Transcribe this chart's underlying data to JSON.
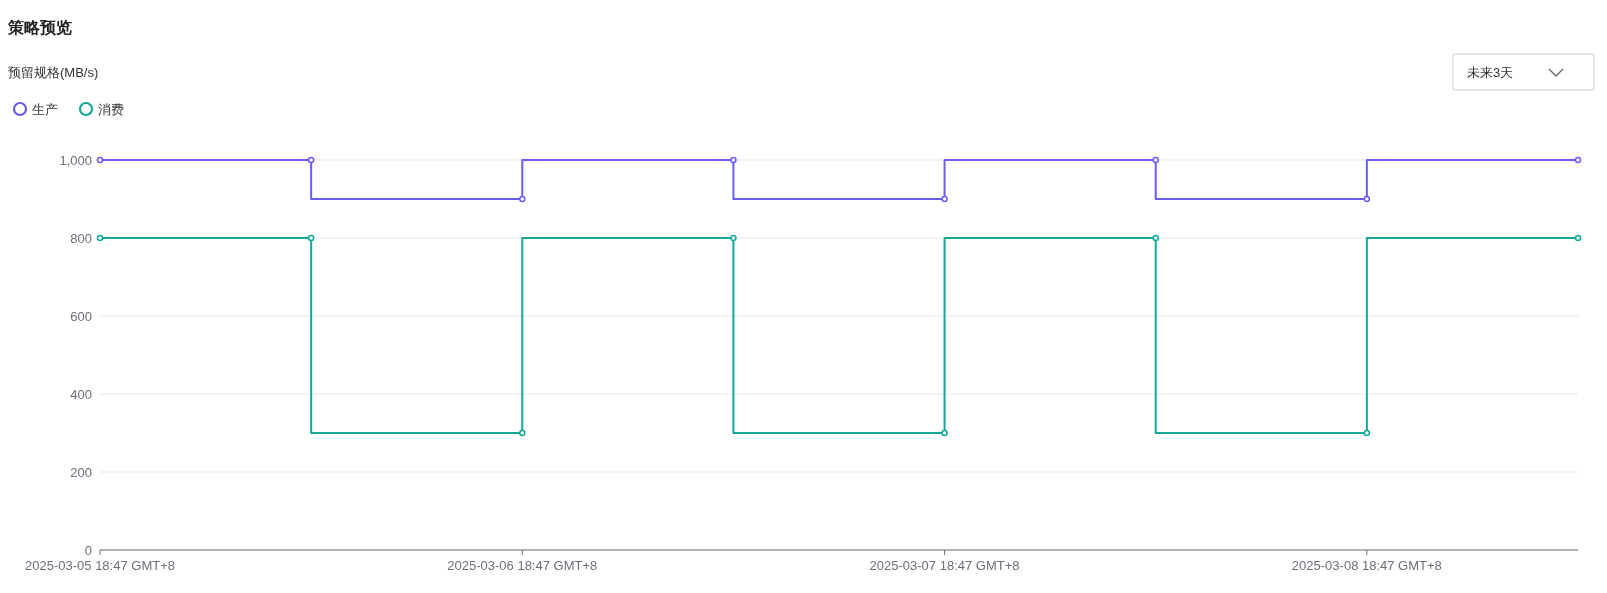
{
  "chart_data": {
    "type": "step",
    "title": "策略预览",
    "annotations": [
      "未来3天",
      "预留规格(MB/s)"
    ],
    "x": [
      "2025-03-05T18:47",
      "2025-03-06T06:47",
      "2025-03-06T18:47",
      "2025-03-07T06:47",
      "2025-03-07T18:47",
      "2025-03-08T06:47",
      "2025-03-08T18:47",
      "2025-03-09T06:47"
    ],
    "series": [
      {
        "name": "生产",
        "color": "#6b5cf0",
        "values": [
          1000,
          1000,
          900,
          1000,
          900,
          1000,
          900,
          1000
        ]
      },
      {
        "name": "消费",
        "color": "#12a89a",
        "values": [
          800,
          800,
          300,
          800,
          300,
          800,
          300,
          800
        ]
      }
    ],
    "xlim": [
      "2025-03-05T18:47",
      "2025-03-09T06:47"
    ],
    "xticks": [
      {
        "value": "2025-03-05T18:47",
        "label": "2025-03-05 18:47 GMT+8"
      },
      {
        "value": "2025-03-06T18:47",
        "label": "2025-03-06 18:47 GMT+8"
      },
      {
        "value": "2025-03-07T18:47",
        "label": "2025-03-07 18:47 GMT+8"
      },
      {
        "value": "2025-03-08T18:47",
        "label": "2025-03-08 18:47 GMT+8"
      }
    ],
    "ylim": [
      0,
      1000
    ],
    "yticks": [
      0,
      200,
      400,
      600,
      800,
      {
        "value": 1000,
        "label": "1,000"
      }
    ],
    "grid": "y",
    "legend": "top left",
    "marker": "circle",
    "line_style": "solid"
  }
}
